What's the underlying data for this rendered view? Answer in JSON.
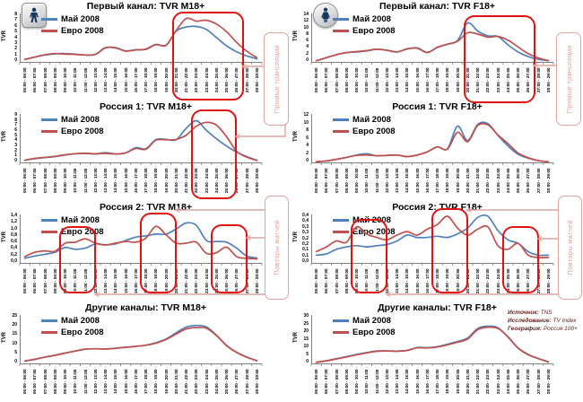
{
  "annotations": {
    "live": "Прямые трансляции",
    "replays": "Повторы матчей"
  },
  "icons": {
    "male_audience": "male-pictogram",
    "female_audience": "female-pictogram"
  },
  "colors": {
    "may": "#4F81BD",
    "euro": "#C0504D",
    "highlight": "#E01212",
    "annotation": "#df9d95"
  },
  "source": {
    "rows": [
      {
        "label": "Источник:",
        "value": " TNS"
      },
      {
        "label": "Исследование:",
        "value": " TV Index"
      },
      {
        "label": "География:",
        "value": " Россия 100+"
      }
    ]
  },
  "chart_data": {
    "type": "line",
    "y_axis_title": "TVR",
    "series_names": [
      "Май 2008",
      "Евро 2008"
    ],
    "legend_position": "top-left",
    "grid": false,
    "categories": [
      "05:00 - 06:00",
      "06:00 - 07:00",
      "07:00 - 08:00",
      "08:00 - 09:00",
      "09:00 - 10:00",
      "10:00 - 11:00",
      "11:00 - 12:00",
      "12:00 - 13:00",
      "13:00 - 14:00",
      "14:00 - 15:00",
      "15:00 - 16:00",
      "16:00 - 17:00",
      "17:00 - 18:00",
      "18:00 - 19:00",
      "19:00 - 20:00",
      "20:00 - 21:00",
      "21:00 - 22:00",
      "22:00 - 23:00",
      "23:00 - 24:00",
      "24:00 - 25:00",
      "25:00 - 26:00",
      "26:00 - 27:00",
      "27:00 - 28:00",
      "28:00 - 29:00"
    ],
    "charts": [
      {
        "key": "pervy-m",
        "title": "Первый канал: TVR M18+",
        "audience": "M18+",
        "ymax": 8,
        "yticks": [
          "8",
          "7",
          "6",
          "5",
          "4",
          "3",
          "2",
          "1",
          "0"
        ],
        "may": [
          0.5,
          0.9,
          1.25,
          1.45,
          1.5,
          1.4,
          1.25,
          1.35,
          2.45,
          2.5,
          1.95,
          2.15,
          2.2,
          3.0,
          2.9,
          5.3,
          6.0,
          6.1,
          5.6,
          4.2,
          2.8,
          1.8,
          1.1,
          0.6
        ],
        "euro": [
          0.5,
          0.9,
          1.3,
          1.5,
          1.4,
          1.35,
          1.25,
          1.35,
          2.5,
          2.45,
          1.9,
          2.1,
          2.25,
          3.05,
          2.9,
          5.4,
          7.45,
          7.0,
          7.15,
          6.5,
          5.2,
          3.4,
          1.9,
          0.8
        ]
      },
      {
        "key": "pervy-f",
        "title": "Первый канал: TVR F18+",
        "audience": "F18+",
        "ymax": 14,
        "yticks": [
          "14",
          "12",
          "10",
          "8",
          "6",
          "4",
          "2",
          "0"
        ],
        "may": [
          0.5,
          1.4,
          2.3,
          2.9,
          3.1,
          3.4,
          3.9,
          3.6,
          3.1,
          4.0,
          4.3,
          3.0,
          4.4,
          5.4,
          6.5,
          11.7,
          9.3,
          7.9,
          7.7,
          5.2,
          3.1,
          1.7,
          0.9,
          0.5
        ],
        "euro": [
          0.5,
          1.4,
          2.3,
          2.9,
          3.2,
          3.5,
          3.9,
          3.6,
          3.1,
          4.0,
          4.2,
          2.9,
          4.5,
          5.4,
          6.3,
          8.8,
          8.4,
          7.5,
          7.7,
          6.6,
          4.6,
          2.6,
          1.3,
          0.5
        ]
      },
      {
        "key": "rossia1-m",
        "title": "Россия 1: TVR M18+",
        "audience": "M18+",
        "ymax": 9,
        "yticks": [
          "9",
          "8",
          "7",
          "6",
          "5",
          "4",
          "3",
          "2",
          "1",
          "0"
        ],
        "may": [
          0.5,
          0.8,
          1.0,
          1.2,
          1.5,
          1.75,
          1.85,
          1.7,
          1.95,
          1.7,
          1.9,
          2.9,
          2.7,
          4.45,
          4.5,
          4.4,
          6.6,
          8.05,
          6.2,
          4.6,
          3.2,
          2.05,
          1.2,
          0.5
        ],
        "euro": [
          0.5,
          0.85,
          1.05,
          1.25,
          1.55,
          1.75,
          1.8,
          1.75,
          1.8,
          1.7,
          1.9,
          2.75,
          2.6,
          4.35,
          4.4,
          4.5,
          5.3,
          7.0,
          7.75,
          7.2,
          5.0,
          2.2,
          1.1,
          0.45
        ]
      },
      {
        "key": "rossia1-f",
        "title": "Россия 1: TVR F18+",
        "audience": "F18+",
        "ymax": 12,
        "yticks": [
          "12",
          "10",
          "8",
          "6",
          "4",
          "2",
          "0"
        ],
        "may": [
          0.3,
          0.5,
          0.9,
          1.4,
          2.0,
          2.3,
          1.8,
          1.9,
          2.0,
          1.6,
          2.0,
          2.8,
          4.05,
          3.6,
          9.35,
          5.7,
          9.8,
          10.0,
          7.0,
          4.3,
          2.2,
          1.2,
          0.6,
          0.25
        ],
        "euro": [
          0.3,
          0.5,
          0.9,
          1.4,
          1.9,
          2.0,
          1.8,
          1.9,
          2.0,
          1.6,
          2.0,
          2.8,
          4.1,
          3.5,
          7.8,
          5.4,
          9.5,
          9.7,
          7.1,
          4.9,
          2.5,
          1.3,
          0.6,
          0.25
        ]
      },
      {
        "key": "rossia2-m",
        "title": "Россия 2:  TVR M18+",
        "audience": "M18+",
        "ymax": 1.4,
        "yticks": [
          "1,4",
          "1,2",
          "1,0",
          "0,8",
          "0,6",
          "0,4",
          "0,2",
          "0,0"
        ],
        "may": [
          0.15,
          0.22,
          0.27,
          0.33,
          0.47,
          0.42,
          0.45,
          0.58,
          0.55,
          0.58,
          0.68,
          0.78,
          0.82,
          0.87,
          0.87,
          1.02,
          1.2,
          1.13,
          0.68,
          0.65,
          0.63,
          0.45,
          0.22,
          0.16
        ],
        "euro": [
          0.2,
          0.33,
          0.37,
          0.36,
          0.6,
          0.63,
          0.73,
          0.6,
          0.55,
          0.6,
          0.65,
          0.63,
          0.75,
          1.1,
          0.85,
          0.6,
          0.6,
          0.63,
          0.3,
          0.32,
          0.48,
          0.2,
          0.15,
          0.13
        ]
      },
      {
        "key": "rossia2-f",
        "title": "Россия 2:  TVR F18+",
        "audience": "F18+",
        "ymax": 0.4,
        "yticks": [
          "0,4",
          "0,4",
          "0,3",
          "0,3",
          "0,2",
          "0,2",
          "0,1",
          "0,1",
          "0,0"
        ],
        "may": [
          0.07,
          0.08,
          0.12,
          0.14,
          0.15,
          0.14,
          0.15,
          0.16,
          0.19,
          0.24,
          0.22,
          0.22,
          0.23,
          0.22,
          0.25,
          0.3,
          0.39,
          0.4,
          0.28,
          0.2,
          0.17,
          0.1,
          0.07,
          0.07
        ],
        "euro": [
          0.1,
          0.14,
          0.19,
          0.18,
          0.31,
          0.25,
          0.22,
          0.2,
          0.24,
          0.27,
          0.24,
          0.29,
          0.33,
          0.4,
          0.3,
          0.24,
          0.29,
          0.31,
          0.15,
          0.12,
          0.17,
          0.07,
          0.05,
          0.05
        ]
      },
      {
        "key": "drugie-m",
        "title": "Другие каналы: TVR M18+",
        "audience": "M18+",
        "ymax": 25,
        "yticks": [
          "25",
          "20",
          "15",
          "10",
          "5",
          "0"
        ],
        "may": [
          1.5,
          2.5,
          3.6,
          4.6,
          5.7,
          6.8,
          7.8,
          8.0,
          7.9,
          8.3,
          8.8,
          9.3,
          9.9,
          11.2,
          13.2,
          16.5,
          19.5,
          20.4,
          19.6,
          15.2,
          9.8,
          6.2,
          3.6,
          1.6
        ],
        "euro": [
          1.5,
          2.4,
          3.5,
          4.5,
          5.7,
          6.8,
          7.8,
          8.0,
          7.9,
          8.3,
          8.8,
          9.3,
          9.9,
          11.0,
          12.9,
          15.8,
          18.5,
          19.3,
          18.9,
          15.0,
          9.6,
          6.0,
          3.5,
          1.7
        ]
      },
      {
        "key": "drugie-f",
        "title": "Другие каналы: TVR F18+",
        "audience": "F18+",
        "ymax": 30,
        "yticks": [
          "30",
          "25",
          "20",
          "15",
          "10",
          "5",
          "0"
        ],
        "may": [
          1.0,
          2.0,
          3.3,
          4.6,
          6.0,
          7.2,
          8.2,
          8.3,
          8.1,
          8.6,
          10.4,
          10.3,
          11.0,
          12.5,
          14.2,
          16.5,
          22.5,
          24.0,
          23.0,
          17.0,
          10.0,
          5.8,
          3.3,
          1.2
        ],
        "euro": [
          1.0,
          1.9,
          3.1,
          4.4,
          5.8,
          7.0,
          8.0,
          8.2,
          8.0,
          8.5,
          10.2,
          10.1,
          10.7,
          12.1,
          13.8,
          15.8,
          21.8,
          23.3,
          22.6,
          17.2,
          10.2,
          6.0,
          3.4,
          1.3
        ]
      }
    ]
  }
}
